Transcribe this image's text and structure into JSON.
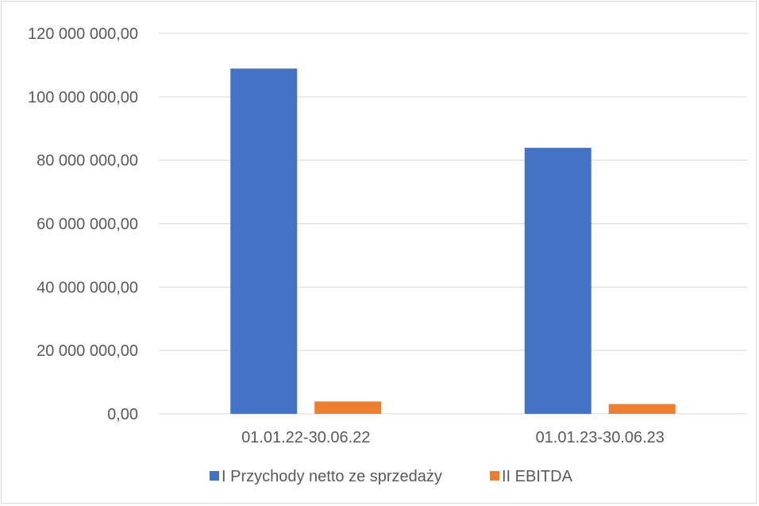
{
  "chart_data": {
    "type": "bar",
    "categories": [
      "01.01.22-30.06.22",
      "01.01.23-30.06.23"
    ],
    "series": [
      {
        "name": "I Przychody netto ze sprzedaży",
        "values": [
          108900000,
          83900000
        ],
        "color": "#4472c4"
      },
      {
        "name": "II EBITDA",
        "values": [
          3900000,
          3100000
        ],
        "color": "#ed7d31"
      }
    ],
    "yticks": [
      "0,00",
      "20 000 000,00",
      "40 000 000,00",
      "60 000 000,00",
      "80 000 000,00",
      "100 000 000,00",
      "120 000 000,00"
    ],
    "ylim": [
      0,
      120000000
    ],
    "grid": true,
    "legend_position": "bottom"
  }
}
